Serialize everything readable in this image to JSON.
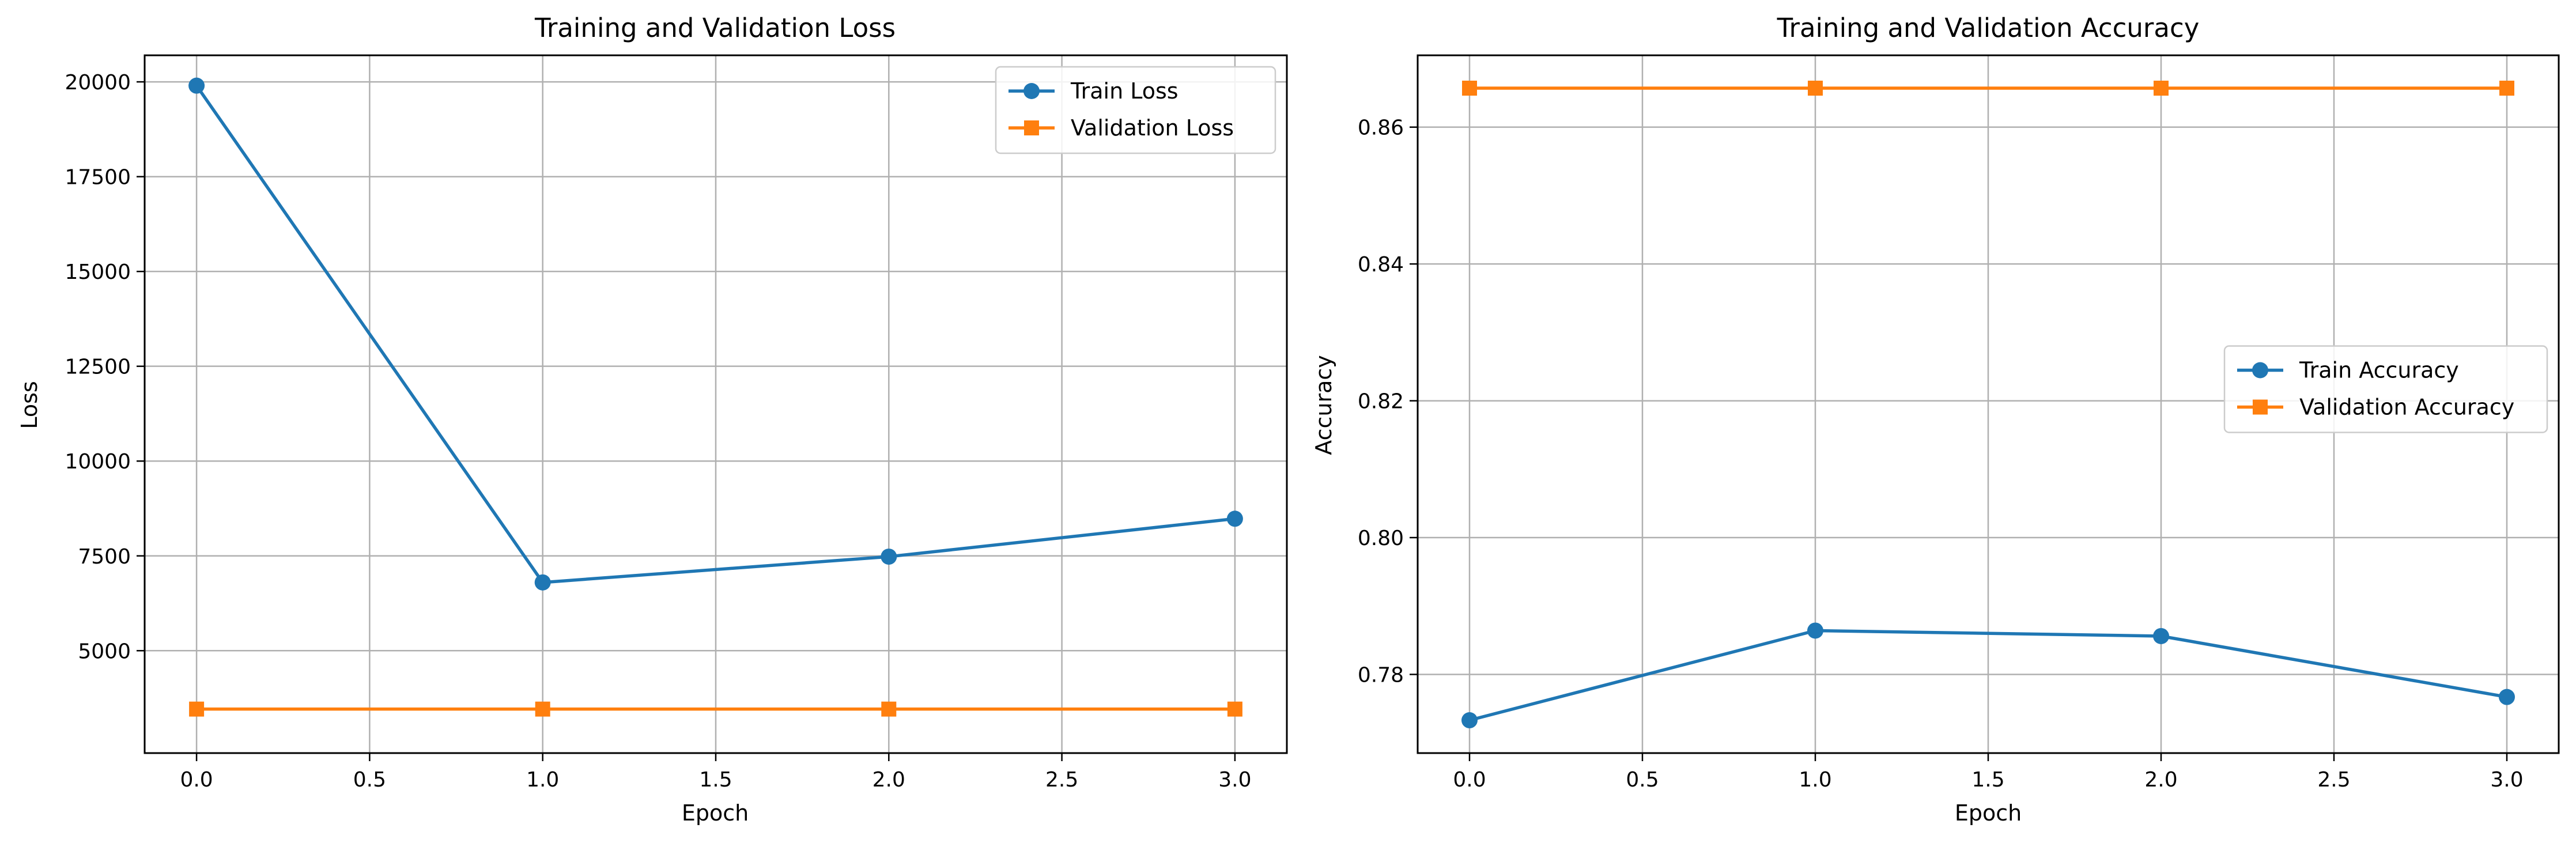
{
  "colors": {
    "train": "#1f77b4",
    "validation": "#ff7f0e",
    "grid": "#b0b0b0",
    "axes": "#000000"
  },
  "chart_data": [
    {
      "type": "line",
      "title": "Training and Validation Loss",
      "xlabel": "Epoch",
      "ylabel": "Loss",
      "xlim": [
        -0.15,
        3.15
      ],
      "ylim": [
        2300,
        20700
      ],
      "xticks": [
        0.0,
        0.5,
        1.0,
        1.5,
        2.0,
        2.5,
        3.0
      ],
      "xtick_labels": [
        "0.0",
        "0.5",
        "1.0",
        "1.5",
        "2.0",
        "2.5",
        "3.0"
      ],
      "yticks": [
        5000,
        7500,
        10000,
        12500,
        15000,
        17500,
        20000
      ],
      "ytick_labels": [
        "5000",
        "7500",
        "10000",
        "12500",
        "15000",
        "17500",
        "20000"
      ],
      "grid": true,
      "legend_position": "top-right",
      "series": [
        {
          "name": "Train Loss",
          "marker": "circle",
          "color": "#1f77b4",
          "x": [
            0,
            1,
            2,
            3
          ],
          "y": [
            19900,
            6800,
            7480,
            8480
          ]
        },
        {
          "name": "Validation Loss",
          "marker": "square",
          "color": "#ff7f0e",
          "x": [
            0,
            1,
            2,
            3
          ],
          "y": [
            3460,
            3460,
            3460,
            3460
          ]
        }
      ]
    },
    {
      "type": "line",
      "title": "Training and Validation Accuracy",
      "xlabel": "Epoch",
      "ylabel": "Accuracy",
      "xlim": [
        -0.15,
        3.15
      ],
      "ylim": [
        0.7685,
        0.8705
      ],
      "xticks": [
        0.0,
        0.5,
        1.0,
        1.5,
        2.0,
        2.5,
        3.0
      ],
      "xtick_labels": [
        "0.0",
        "0.5",
        "1.0",
        "1.5",
        "2.0",
        "2.5",
        "3.0"
      ],
      "yticks": [
        0.78,
        0.8,
        0.82,
        0.84,
        0.86
      ],
      "ytick_labels": [
        "0.78",
        "0.80",
        "0.82",
        "0.84",
        "0.86"
      ],
      "grid": true,
      "legend_position": "center-right",
      "series": [
        {
          "name": "Train Accuracy",
          "marker": "circle",
          "color": "#1f77b4",
          "x": [
            0,
            1,
            2,
            3
          ],
          "y": [
            0.7733,
            0.7864,
            0.7856,
            0.7767
          ]
        },
        {
          "name": "Validation Accuracy",
          "marker": "square",
          "color": "#ff7f0e",
          "x": [
            0,
            1,
            2,
            3
          ],
          "y": [
            0.8657,
            0.8657,
            0.8657,
            0.8657
          ]
        }
      ]
    }
  ]
}
